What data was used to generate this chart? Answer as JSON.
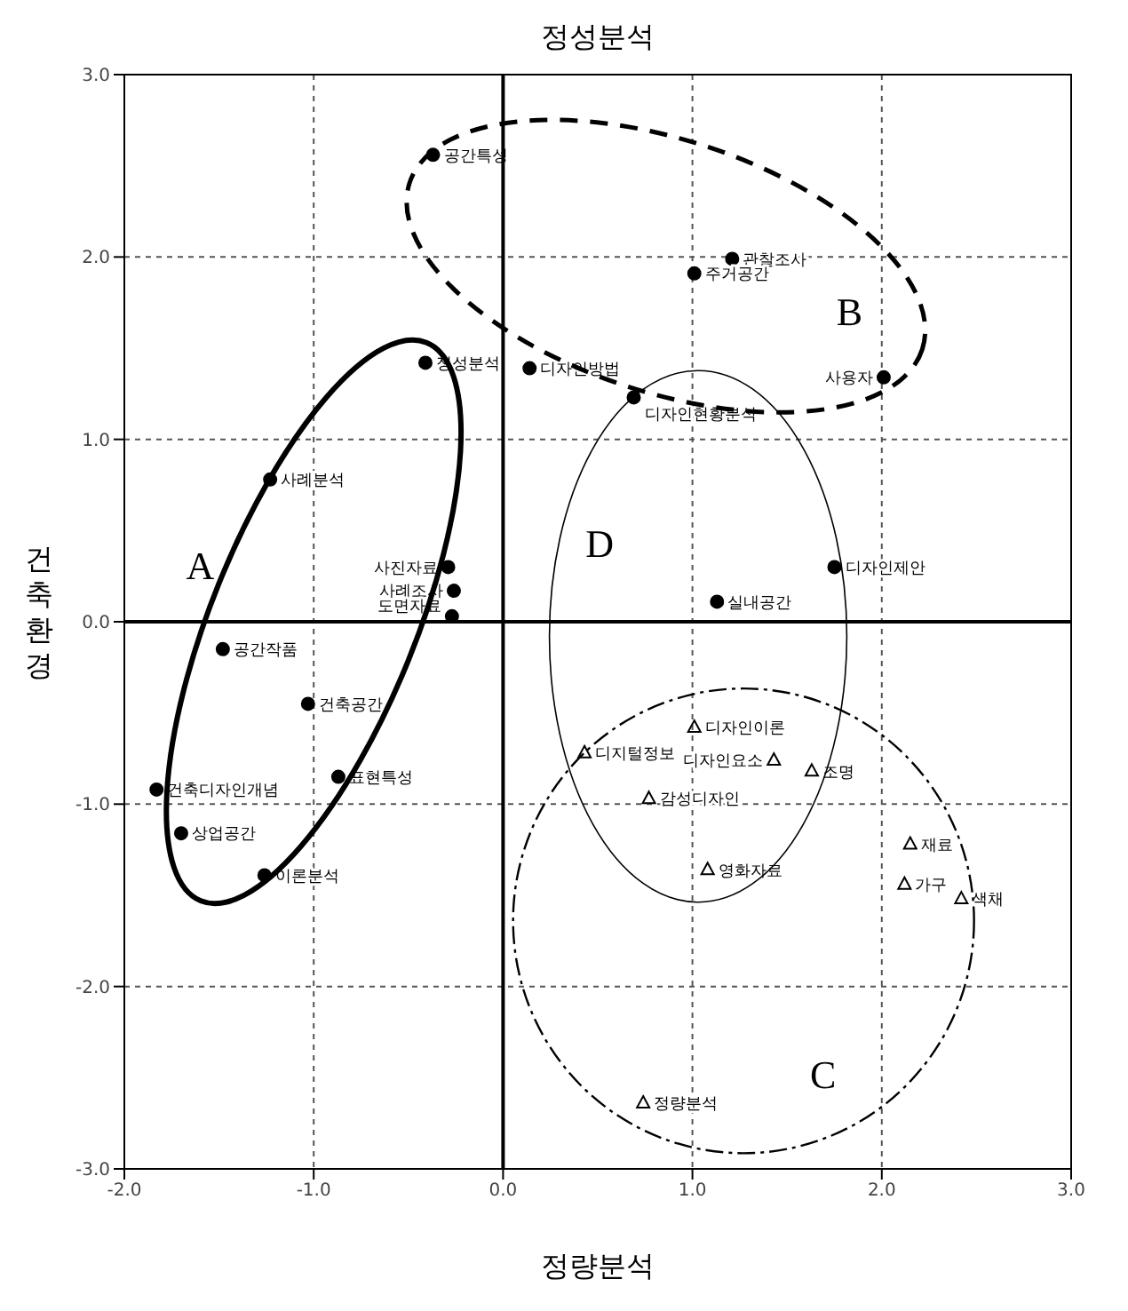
{
  "chart_data": {
    "type": "scatter",
    "title": "정성분석",
    "xlabel": "정량분석",
    "ylabel": "건축환경",
    "xlim": [
      -2,
      3
    ],
    "ylim": [
      -3,
      3
    ],
    "xticks": [
      {
        "value": -2,
        "label": "-2.0"
      },
      {
        "value": -1,
        "label": "-1.0"
      },
      {
        "value": 0,
        "label": "0.0"
      },
      {
        "value": 1,
        "label": "1.0"
      },
      {
        "value": 2,
        "label": "2.0"
      },
      {
        "value": 3,
        "label": "3.0"
      }
    ],
    "yticks": [
      {
        "value": -3,
        "label": "-3.0"
      },
      {
        "value": -2,
        "label": "-2.0"
      },
      {
        "value": -1,
        "label": "-1.0"
      },
      {
        "value": 0,
        "label": "0.0"
      },
      {
        "value": 1,
        "label": "1.0"
      },
      {
        "value": 2,
        "label": "2.0"
      },
      {
        "value": 3,
        "label": "3.0"
      }
    ],
    "grid": true,
    "series": [
      {
        "color": "#000000",
        "marker": "circle",
        "x": [
          -0.41,
          -1.23,
          -0.29,
          -0.26,
          -0.27,
          -1.48,
          -1.03,
          -0.87,
          -1.83,
          -1.7,
          -1.26
        ],
        "values": [
          1.42,
          0.78,
          0.3,
          0.17,
          0.03,
          -0.15,
          -0.45,
          -0.85,
          -0.92,
          -1.16,
          -1.39
        ]
      },
      {
        "color": "#000000",
        "marker": "circle",
        "x": [
          -0.37,
          1.21,
          1.01,
          0.14,
          2.01,
          0.69,
          1.75,
          1.13
        ],
        "values": [
          2.56,
          1.99,
          1.91,
          1.39,
          1.34,
          1.23,
          0.3,
          0.11
        ]
      },
      {
        "color": "#000000",
        "marker": "triangle",
        "x": [
          0.43,
          1.01,
          1.43,
          0.77,
          1.63,
          1.08,
          2.15,
          2.12,
          2.42,
          0.74
        ],
        "values": [
          -0.72,
          -0.58,
          -0.76,
          -0.97,
          -0.82,
          -1.36,
          -1.22,
          -1.44,
          -1.52,
          -2.64
        ]
      }
    ],
    "annotations": [
      {
        "text": "정성분석",
        "x": -0.41,
        "y": 1.42
      },
      {
        "text": "사례분석",
        "x": -1.23,
        "y": 0.78
      },
      {
        "text": "사진자료",
        "x": -0.29,
        "y": 0.3
      },
      {
        "text": "사례조사",
        "x": -0.26,
        "y": 0.17
      },
      {
        "text": "도면자료",
        "x": -0.27,
        "y": 0.03
      },
      {
        "text": "공간작품",
        "x": -1.48,
        "y": -0.15
      },
      {
        "text": "건축공간",
        "x": -1.03,
        "y": -0.45
      },
      {
        "text": "표현특성",
        "x": -0.87,
        "y": -0.85
      },
      {
        "text": "건축디자인개념",
        "x": -1.83,
        "y": -0.92
      },
      {
        "text": "상업공간",
        "x": -1.7,
        "y": -1.16
      },
      {
        "text": "이론분석",
        "x": -1.26,
        "y": -1.39
      },
      {
        "text": "공간특성",
        "x": -0.37,
        "y": 2.56
      },
      {
        "text": "관찰조사",
        "x": 1.21,
        "y": 1.99
      },
      {
        "text": "주거공간",
        "x": 1.01,
        "y": 1.91
      },
      {
        "text": "디자인방법",
        "x": 0.14,
        "y": 1.39
      },
      {
        "text": "사용자",
        "x": 2.01,
        "y": 1.34
      },
      {
        "text": "디자인현황분석",
        "x": 0.69,
        "y": 1.23
      },
      {
        "text": "디자인제안",
        "x": 1.75,
        "y": 0.3
      },
      {
        "text": "실내공간",
        "x": 1.13,
        "y": 0.11
      },
      {
        "text": "디지털정보",
        "x": 0.43,
        "y": -0.72
      },
      {
        "text": "디자인이론",
        "x": 1.01,
        "y": -0.58
      },
      {
        "text": "디자인요소",
        "x": 1.43,
        "y": -0.76
      },
      {
        "text": "감성디자인",
        "x": 0.77,
        "y": -0.97
      },
      {
        "text": "조명",
        "x": 1.63,
        "y": -0.82
      },
      {
        "text": "영화자료",
        "x": 1.08,
        "y": -1.36
      },
      {
        "text": "재료",
        "x": 2.15,
        "y": -1.22
      },
      {
        "text": "가구",
        "x": 2.12,
        "y": -1.44
      },
      {
        "text": "색채",
        "x": 2.42,
        "y": -1.52
      },
      {
        "text": "정량분석",
        "x": 0.74,
        "y": -2.64
      },
      "A",
      "B",
      "C",
      "D"
    ]
  }
}
